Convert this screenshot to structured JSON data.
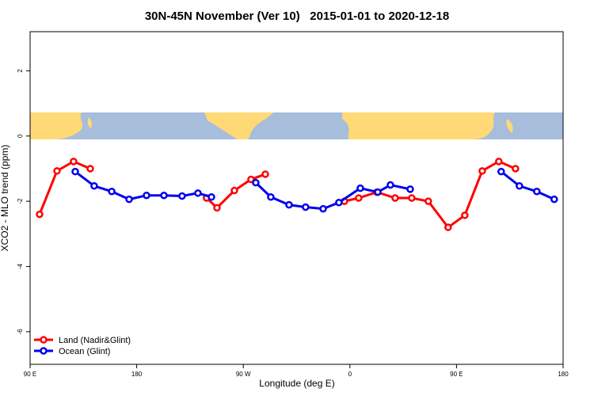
{
  "chart_data": {
    "type": "line",
    "title": "30N-45N November (Ver 10)   2015-01-01 to 2020-12-18",
    "xlabel": "Longitude (deg E)",
    "ylabel": "XCO2 - MLO trend (ppm)",
    "xlim": [
      90,
      540
    ],
    "ylim": [
      -7,
      3.2
    ],
    "xticks": [
      {
        "value": 90,
        "label": "90 E"
      },
      180,
      {
        "value": 270,
        "label": "90 W"
      },
      {
        "value": 360,
        "label": "0"
      },
      {
        "value": 450,
        "label": "90 E"
      },
      {
        "value": 540,
        "label": "180"
      }
    ],
    "yticks": [
      2,
      0,
      -2,
      -4,
      -6
    ],
    "legend": "bottomleft",
    "series": [
      {
        "name": "Land (Nadir&Glint)",
        "color": "#ff0000",
        "x": [
          98,
          112.7,
          126.7,
          140.8,
          null,
          239,
          247.8,
          262.5,
          276.5,
          288.6,
          null,
          355.4,
          367.4,
          382.8,
          398.2,
          412.2,
          426.2,
          442.9,
          457,
          471.7,
          485.7,
          499.8
        ],
        "values": [
          -2.4,
          -1.07,
          -0.78,
          -1.0,
          null,
          -1.9,
          -2.2,
          -1.67,
          -1.33,
          -1.17,
          null,
          -2.0,
          -1.9,
          -1.72,
          -1.9,
          -1.9,
          -2.0,
          -2.8,
          -2.43,
          -1.07,
          -0.78,
          -1.0
        ]
      },
      {
        "name": "Ocean (Glint)",
        "color": "#0000ee",
        "x": [
          128.1,
          144.1,
          158.9,
          173.6,
          188.3,
          203,
          218.3,
          231.7,
          243.1,
          null,
          280.5,
          293.2,
          308.6,
          322.6,
          337.4,
          350.7,
          368.8,
          383.5,
          394.2,
          410.9,
          null,
          487.7,
          503.1,
          517.8,
          532.5
        ],
        "values": [
          -1.09,
          -1.53,
          -1.7,
          -1.94,
          -1.82,
          -1.82,
          -1.84,
          -1.75,
          -1.87,
          null,
          -1.43,
          -1.87,
          -2.11,
          -2.18,
          -2.23,
          -2.04,
          -1.6,
          -1.72,
          -1.5,
          -1.63,
          null,
          -1.09,
          -1.53,
          -1.7,
          -1.94
        ]
      }
    ]
  }
}
